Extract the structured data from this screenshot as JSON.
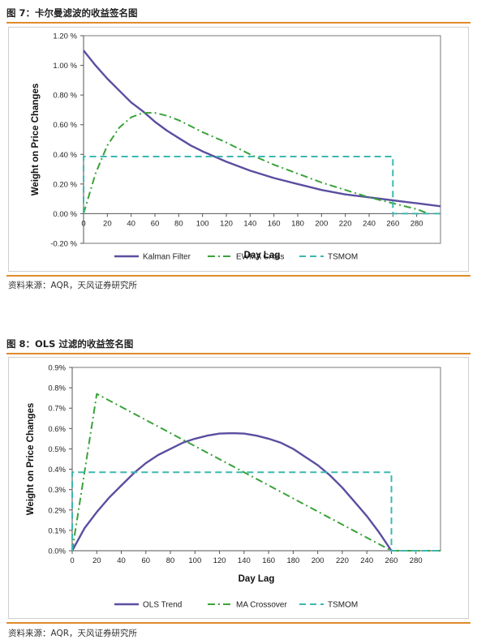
{
  "figures": [
    {
      "caption": "图 7：卡尔曼滤波的收益签名图",
      "source": "资料来源：AQR，天风证券研究所"
    },
    {
      "caption": "图 8：OLS 过滤的收益签名图",
      "source": "资料来源：AQR，天风证券研究所"
    }
  ],
  "chart_data": [
    {
      "type": "line",
      "title": "",
      "xlabel": "Day Lag",
      "ylabel": "Weight on Price Changes",
      "xlim": [
        0,
        300
      ],
      "ylim": [
        -0.2,
        1.2
      ],
      "x_ticks": [
        0,
        20,
        40,
        60,
        80,
        100,
        120,
        140,
        160,
        180,
        200,
        220,
        240,
        260,
        280
      ],
      "x_tick_labels": [
        "0",
        "20",
        "40",
        "60",
        "80",
        "100",
        "120",
        "140",
        "160",
        "180",
        "200",
        "220",
        "240",
        "260",
        "280"
      ],
      "y_ticks": [
        -0.2,
        0,
        0.2,
        0.4,
        0.6,
        0.8,
        1.0,
        1.2
      ],
      "y_tick_labels": [
        "-0.20 %",
        "0.00 %",
        "0.20 %",
        "0.40 %",
        "0.60 %",
        "0.80 %",
        "1.00 %",
        "1.20 %"
      ],
      "grid": false,
      "legend_position": "bottom",
      "series": [
        {
          "name": "Kalman Filter",
          "color": "#5a4fa0",
          "dash": "solid",
          "x": [
            0,
            10,
            20,
            30,
            40,
            50,
            60,
            70,
            80,
            90,
            100,
            120,
            140,
            160,
            180,
            200,
            220,
            240,
            260,
            280,
            300
          ],
          "y": [
            1.1,
            1.0,
            0.91,
            0.83,
            0.75,
            0.69,
            0.62,
            0.56,
            0.51,
            0.46,
            0.42,
            0.35,
            0.29,
            0.24,
            0.2,
            0.16,
            0.13,
            0.11,
            0.09,
            0.07,
            0.05
          ]
        },
        {
          "name": "EWMA Cross",
          "color": "#3aa23a",
          "dash": "dashdot",
          "x": [
            0,
            10,
            20,
            30,
            40,
            50,
            60,
            70,
            80,
            90,
            100,
            120,
            140,
            160,
            180,
            200,
            220,
            240,
            260,
            280,
            290
          ],
          "y": [
            0.0,
            0.27,
            0.46,
            0.58,
            0.65,
            0.68,
            0.68,
            0.66,
            0.63,
            0.59,
            0.55,
            0.48,
            0.4,
            0.33,
            0.27,
            0.21,
            0.16,
            0.11,
            0.07,
            0.03,
            0.0
          ]
        },
        {
          "name": "TSMOM",
          "color": "#3bb8b0",
          "dash": "dashed",
          "x": [
            0,
            0,
            260,
            260,
            300
          ],
          "y": [
            0.0,
            0.385,
            0.385,
            0.0,
            0.0
          ]
        }
      ]
    },
    {
      "type": "line",
      "title": "",
      "xlabel": "Day Lag",
      "ylabel": "Weight on Price Changes",
      "xlim": [
        0,
        300
      ],
      "ylim": [
        0,
        0.9
      ],
      "x_ticks": [
        0,
        20,
        40,
        60,
        80,
        100,
        120,
        140,
        160,
        180,
        200,
        220,
        240,
        260,
        280
      ],
      "x_tick_labels": [
        "0",
        "20",
        "40",
        "60",
        "80",
        "100",
        "120",
        "140",
        "160",
        "180",
        "200",
        "220",
        "240",
        "260",
        "280"
      ],
      "y_ticks": [
        0,
        0.1,
        0.2,
        0.3,
        0.4,
        0.5,
        0.6,
        0.7,
        0.8,
        0.9
      ],
      "y_tick_labels": [
        "0.0%",
        "0.1%",
        "0.2%",
        "0.3%",
        "0.4%",
        "0.5%",
        "0.6%",
        "0.7%",
        "0.8%",
        "0.9%"
      ],
      "grid": false,
      "legend_position": "bottom",
      "series": [
        {
          "name": "OLS Trend",
          "color": "#5a4fa0",
          "dash": "solid",
          "x": [
            0,
            10,
            20,
            30,
            40,
            50,
            60,
            70,
            80,
            90,
            100,
            110,
            120,
            130,
            140,
            150,
            160,
            170,
            180,
            190,
            200,
            210,
            220,
            230,
            240,
            250,
            260
          ],
          "y": [
            0.0,
            0.11,
            0.19,
            0.26,
            0.32,
            0.38,
            0.43,
            0.47,
            0.5,
            0.53,
            0.55,
            0.565,
            0.575,
            0.577,
            0.575,
            0.565,
            0.55,
            0.53,
            0.5,
            0.46,
            0.42,
            0.37,
            0.31,
            0.24,
            0.17,
            0.09,
            0.0
          ]
        },
        {
          "name": "MA Crossover",
          "color": "#3aa23a",
          "dash": "dashdot",
          "x": [
            0,
            20,
            260,
            300
          ],
          "y": [
            0.0,
            0.77,
            0.0,
            0.0
          ]
        },
        {
          "name": "TSMOM",
          "color": "#3bb8b0",
          "dash": "dashed",
          "x": [
            0,
            0,
            260,
            260,
            300
          ],
          "y": [
            0.0,
            0.385,
            0.385,
            0.0,
            0.0
          ]
        }
      ]
    }
  ]
}
